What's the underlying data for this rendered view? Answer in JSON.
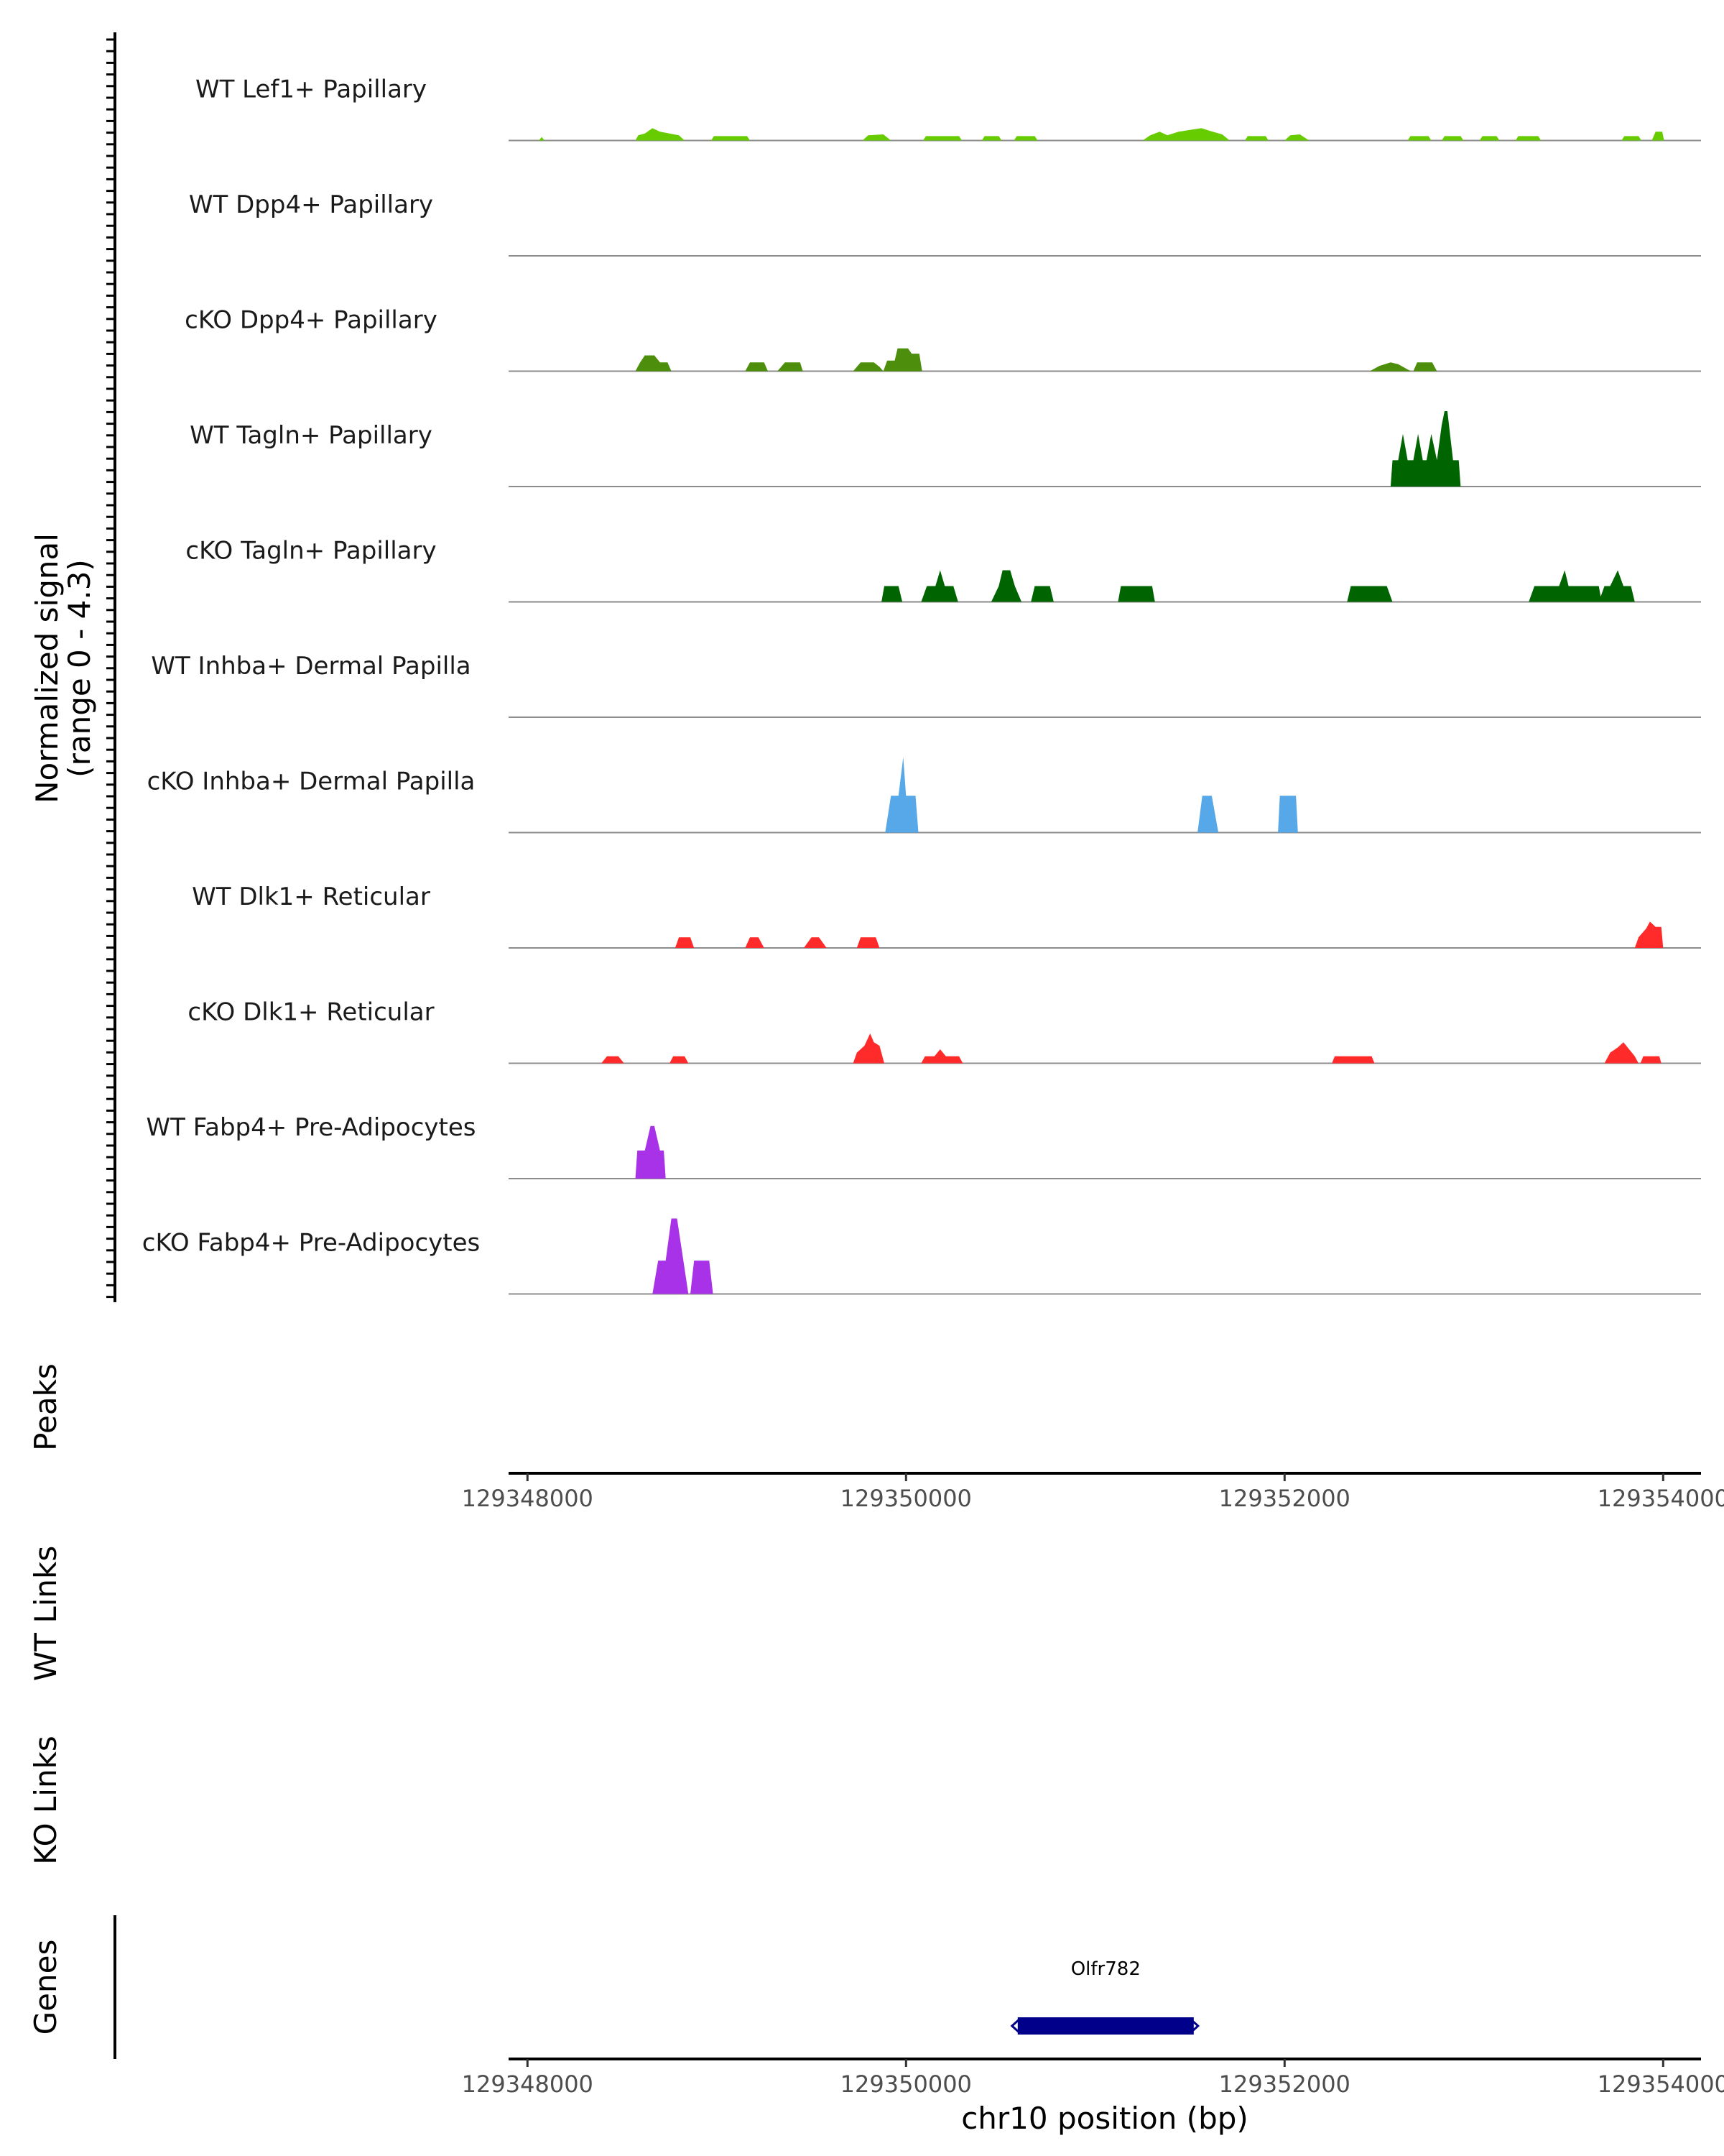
{
  "chart_data": {
    "type": "coverage",
    "chromosome": "chr10",
    "xlim": [
      129347900,
      129354200
    ],
    "x_ticks": [
      129348000,
      129350000,
      129352000,
      129354000
    ],
    "x_tick_labels": [
      "129348000",
      "129350000",
      "129352000",
      "129354000"
    ],
    "xlabel": "chr10 position (bp)",
    "ylabel": "Normalized signal",
    "ylabel_range": "(range 0 - 4.3)",
    "ylim": [
      0,
      4.3
    ],
    "panel_titles": {
      "peaks": "Peaks",
      "wt_links": "WT Links",
      "ko_links": "KO Links",
      "genes": "Genes"
    },
    "tracks": [
      {
        "name": "WT Lef1+ Papillary",
        "color": "#66cc00",
        "points": [
          [
            129348060,
            0
          ],
          [
            129348075,
            0.2
          ],
          [
            129348090,
            0
          ],
          [
            129348570,
            0
          ],
          [
            129348585,
            0.3
          ],
          [
            129348620,
            0.4
          ],
          [
            129348660,
            0.7
          ],
          [
            129348700,
            0.5
          ],
          [
            129348750,
            0.4
          ],
          [
            129348800,
            0.3
          ],
          [
            129348830,
            0
          ],
          [
            129348970,
            0
          ],
          [
            129348985,
            0.25
          ],
          [
            129349160,
            0.25
          ],
          [
            129349175,
            0
          ],
          [
            129349770,
            0
          ],
          [
            129349800,
            0.3
          ],
          [
            129349880,
            0.35
          ],
          [
            129349920,
            0
          ],
          [
            129350090,
            0
          ],
          [
            129350105,
            0.25
          ],
          [
            129350280,
            0.25
          ],
          [
            129350295,
            0
          ],
          [
            129350400,
            0
          ],
          [
            129350415,
            0.25
          ],
          [
            129350490,
            0.25
          ],
          [
            129350505,
            0
          ],
          [
            129350570,
            0
          ],
          [
            129350585,
            0.25
          ],
          [
            129350680,
            0.25
          ],
          [
            129350695,
            0
          ],
          [
            129351250,
            0
          ],
          [
            129351290,
            0.3
          ],
          [
            129351340,
            0.5
          ],
          [
            129351380,
            0.3
          ],
          [
            129351440,
            0.5
          ],
          [
            129351500,
            0.6
          ],
          [
            129351560,
            0.7
          ],
          [
            129351620,
            0.5
          ],
          [
            129351670,
            0.35
          ],
          [
            129351710,
            0
          ],
          [
            129351790,
            0
          ],
          [
            129351805,
            0.25
          ],
          [
            129351900,
            0.25
          ],
          [
            129351915,
            0
          ],
          [
            129352000,
            0
          ],
          [
            129352030,
            0.3
          ],
          [
            129352080,
            0.35
          ],
          [
            129352130,
            0
          ],
          [
            129352650,
            0
          ],
          [
            129352665,
            0.25
          ],
          [
            129352760,
            0.25
          ],
          [
            129352775,
            0
          ],
          [
            129352830,
            0
          ],
          [
            129352845,
            0.25
          ],
          [
            129352930,
            0.25
          ],
          [
            129352945,
            0
          ],
          [
            129353030,
            0
          ],
          [
            129353045,
            0.25
          ],
          [
            129353120,
            0.25
          ],
          [
            129353135,
            0
          ],
          [
            129353220,
            0
          ],
          [
            129353235,
            0.25
          ],
          [
            129353340,
            0.25
          ],
          [
            129353355,
            0
          ],
          [
            129353780,
            0
          ],
          [
            129353795,
            0.25
          ],
          [
            129353870,
            0.25
          ],
          [
            129353885,
            0
          ],
          [
            129353940,
            0
          ],
          [
            129353960,
            0.5
          ],
          [
            129353995,
            0.5
          ],
          [
            129354005,
            0
          ]
        ]
      },
      {
        "name": "WT Dpp4+ Papillary",
        "color": "#4d8f0d",
        "points": []
      },
      {
        "name": "cKO Dpp4+ Papillary",
        "color": "#4d8f0d",
        "points": [
          [
            129348570,
            0
          ],
          [
            129348595,
            0.5
          ],
          [
            129348620,
            0.9
          ],
          [
            129348670,
            0.9
          ],
          [
            129348700,
            0.5
          ],
          [
            129348740,
            0.5
          ],
          [
            129348760,
            0
          ],
          [
            129349150,
            0
          ],
          [
            129349175,
            0.5
          ],
          [
            129349250,
            0.5
          ],
          [
            129349270,
            0
          ],
          [
            129349320,
            0
          ],
          [
            129349360,
            0.5
          ],
          [
            129349440,
            0.5
          ],
          [
            129349455,
            0
          ],
          [
            129349720,
            0
          ],
          [
            129349760,
            0.5
          ],
          [
            129349830,
            0.5
          ],
          [
            129349860,
            0.25
          ],
          [
            129349880,
            0
          ],
          [
            129349880,
            0
          ],
          [
            129349900,
            0.6
          ],
          [
            129349940,
            0.6
          ],
          [
            129349955,
            1.3
          ],
          [
            129350010,
            1.3
          ],
          [
            129350030,
            1.0
          ],
          [
            129350070,
            1.0
          ],
          [
            129350085,
            0
          ],
          [
            129352450,
            0
          ],
          [
            129352500,
            0.3
          ],
          [
            129352560,
            0.5
          ],
          [
            129352600,
            0.4
          ],
          [
            129352650,
            0.1
          ],
          [
            129352670,
            0
          ],
          [
            129352680,
            0
          ],
          [
            129352700,
            0.5
          ],
          [
            129352780,
            0.5
          ],
          [
            129352805,
            0
          ]
        ]
      },
      {
        "name": "WT Tagln+ Papillary",
        "color": "#006400",
        "points": [
          [
            129352560,
            0
          ],
          [
            129352570,
            1.5
          ],
          [
            129352600,
            1.5
          ],
          [
            129352625,
            3.0
          ],
          [
            129352650,
            1.5
          ],
          [
            129352680,
            1.5
          ],
          [
            129352705,
            3.0
          ],
          [
            129352730,
            1.5
          ],
          [
            129352750,
            1.5
          ],
          [
            129352775,
            3.0
          ],
          [
            129352805,
            1.5
          ],
          [
            129352830,
            3.5
          ],
          [
            129352845,
            4.3
          ],
          [
            129352860,
            4.3
          ],
          [
            129352890,
            1.5
          ],
          [
            129352920,
            1.5
          ],
          [
            129352930,
            0
          ]
        ]
      },
      {
        "name": "cKO Tagln+ Papillary",
        "color": "#006400",
        "points": [
          [
            129349870,
            0
          ],
          [
            129349885,
            0.9
          ],
          [
            129349960,
            0.9
          ],
          [
            129349980,
            0
          ],
          [
            129350080,
            0
          ],
          [
            129350110,
            0.9
          ],
          [
            129350155,
            0.9
          ],
          [
            129350180,
            1.8
          ],
          [
            129350205,
            0.9
          ],
          [
            129350250,
            0.9
          ],
          [
            129350275,
            0
          ],
          [
            129350450,
            0
          ],
          [
            129350490,
            0.9
          ],
          [
            129350510,
            1.8
          ],
          [
            129350550,
            1.8
          ],
          [
            129350575,
            0.9
          ],
          [
            129350610,
            0
          ],
          [
            129350660,
            0
          ],
          [
            129350680,
            0.9
          ],
          [
            129350760,
            0.9
          ],
          [
            129350780,
            0
          ],
          [
            129351120,
            0
          ],
          [
            129351135,
            0.9
          ],
          [
            129351300,
            0.9
          ],
          [
            129351315,
            0
          ],
          [
            129352330,
            0
          ],
          [
            129352350,
            0.9
          ],
          [
            129352540,
            0.9
          ],
          [
            129352570,
            0
          ],
          [
            129353290,
            0
          ],
          [
            129353320,
            0.9
          ],
          [
            129353450,
            0.9
          ],
          [
            129353480,
            1.8
          ],
          [
            129353500,
            0.9
          ],
          [
            129353660,
            0.9
          ],
          [
            129353675,
            0
          ],
          [
            129353660,
            0
          ],
          [
            129353690,
            0.9
          ],
          [
            129353720,
            0.9
          ],
          [
            129353760,
            1.8
          ],
          [
            129353790,
            0.9
          ],
          [
            129353830,
            0.9
          ],
          [
            129353850,
            0
          ]
        ]
      },
      {
        "name": "WT Inhba+ Dermal Papilla",
        "color": "#56a8e8",
        "points": []
      },
      {
        "name": "cKO Inhba+ Dermal Papilla",
        "color": "#56a8e8",
        "points": [
          [
            129349890,
            0
          ],
          [
            129349920,
            2.1
          ],
          [
            129349960,
            2.1
          ],
          [
            129349985,
            4.3
          ],
          [
            129350000,
            2.1
          ],
          [
            129350050,
            2.1
          ],
          [
            129350065,
            0
          ],
          [
            129351540,
            0
          ],
          [
            129351565,
            2.1
          ],
          [
            129351615,
            2.1
          ],
          [
            129351650,
            0
          ],
          [
            129351965,
            0
          ],
          [
            129351975,
            2.1
          ],
          [
            129352060,
            2.1
          ],
          [
            129352070,
            0
          ]
        ]
      },
      {
        "name": "WT Dlk1+ Reticular",
        "color": "#ff2a2a",
        "points": [
          [
            129348780,
            0
          ],
          [
            129348800,
            0.6
          ],
          [
            129348860,
            0.6
          ],
          [
            129348880,
            0
          ],
          [
            129349150,
            0
          ],
          [
            129349175,
            0.6
          ],
          [
            129349220,
            0.6
          ],
          [
            129349250,
            0
          ],
          [
            129349460,
            0
          ],
          [
            129349500,
            0.6
          ],
          [
            129349540,
            0.6
          ],
          [
            129349580,
            0
          ],
          [
            129349740,
            0
          ],
          [
            129349760,
            0.6
          ],
          [
            129349840,
            0.6
          ],
          [
            129349860,
            0
          ],
          [
            129353850,
            0
          ],
          [
            129353870,
            0.6
          ],
          [
            129353910,
            1.1
          ],
          [
            129353930,
            1.5
          ],
          [
            129353960,
            1.2
          ],
          [
            129353990,
            1.2
          ],
          [
            129354000,
            0
          ]
        ]
      },
      {
        "name": "cKO Dlk1+ Reticular",
        "color": "#ff2a2a",
        "points": [
          [
            129348390,
            0
          ],
          [
            129348420,
            0.4
          ],
          [
            129348480,
            0.4
          ],
          [
            129348510,
            0
          ],
          [
            129348750,
            0
          ],
          [
            129348770,
            0.4
          ],
          [
            129348830,
            0.4
          ],
          [
            129348850,
            0
          ],
          [
            129349720,
            0
          ],
          [
            129349740,
            0.6
          ],
          [
            129349780,
            1.0
          ],
          [
            129349810,
            1.7
          ],
          [
            129349830,
            1.2
          ],
          [
            129349860,
            1.0
          ],
          [
            129349885,
            0
          ],
          [
            129350080,
            0
          ],
          [
            129350100,
            0.4
          ],
          [
            129350150,
            0.4
          ],
          [
            129350180,
            0.8
          ],
          [
            129350210,
            0.4
          ],
          [
            129350280,
            0.4
          ],
          [
            129350300,
            0
          ],
          [
            129352250,
            0
          ],
          [
            129352265,
            0.4
          ],
          [
            129352460,
            0.4
          ],
          [
            129352475,
            0
          ],
          [
            129353690,
            0
          ],
          [
            129353720,
            0.6
          ],
          [
            129353760,
            0.9
          ],
          [
            129353790,
            1.2
          ],
          [
            129353820,
            0.8
          ],
          [
            129353850,
            0.4
          ],
          [
            129353870,
            0
          ],
          [
            129353880,
            0
          ],
          [
            129353895,
            0.4
          ],
          [
            129353980,
            0.4
          ],
          [
            129353990,
            0
          ]
        ]
      },
      {
        "name": "WT Fabp4+ Pre-Adipocytes",
        "color": "#a832e8",
        "points": [
          [
            129348570,
            0
          ],
          [
            129348580,
            1.6
          ],
          [
            129348620,
            1.6
          ],
          [
            129348650,
            3.0
          ],
          [
            129348670,
            3.0
          ],
          [
            129348700,
            1.6
          ],
          [
            129348720,
            1.6
          ],
          [
            129348730,
            0
          ]
        ]
      },
      {
        "name": "cKO Fabp4+ Pre-Adipocytes",
        "color": "#a832e8",
        "points": [
          [
            129348660,
            0
          ],
          [
            129348690,
            1.9
          ],
          [
            129348730,
            1.9
          ],
          [
            129348760,
            4.3
          ],
          [
            129348790,
            4.3
          ],
          [
            129348850,
            0
          ],
          [
            129348860,
            0
          ],
          [
            129348880,
            1.9
          ],
          [
            129348960,
            1.9
          ],
          [
            129348980,
            0
          ]
        ]
      }
    ],
    "genes": [
      {
        "name": "Olfr782",
        "start": 129350590,
        "end": 129351520,
        "strand": "-",
        "color": "#00008b"
      }
    ]
  }
}
